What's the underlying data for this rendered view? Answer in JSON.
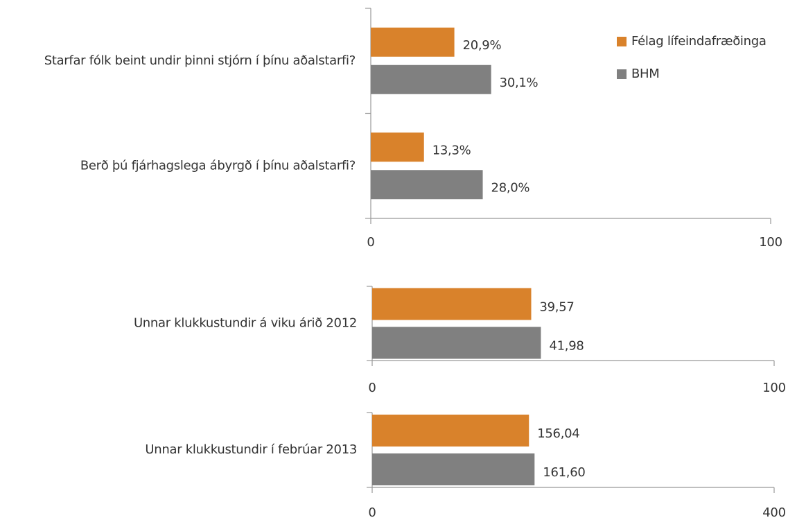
{
  "chart_data": [
    {
      "type": "barh",
      "categories": [
        "Starfar fólk beint undir þinni stjórn í þínu aðalstarfi?",
        "Berð þú fjárhagslega ábyrgð í þínu aðalstarfi?"
      ],
      "series": [
        {
          "name": "Félag lífeindafræðinga",
          "color": "#d9822b",
          "values": [
            20.9,
            13.3
          ],
          "value_labels": [
            "20,9%",
            "13,3%"
          ]
        },
        {
          "name": "BHM",
          "color": "#808080",
          "values": [
            30.1,
            28.0
          ],
          "value_labels": [
            "30,1%",
            "28,0%"
          ]
        }
      ],
      "xlim": [
        0,
        100
      ],
      "xticks": [
        0,
        100
      ],
      "legend": "top-right"
    },
    {
      "type": "barh",
      "categories": [
        "Unnar klukkustundir á viku árið 2012"
      ],
      "series": [
        {
          "color": "#d9822b",
          "values": [
            39.57
          ],
          "value_labels": [
            "39,57"
          ]
        },
        {
          "color": "#808080",
          "values": [
            41.98
          ],
          "value_labels": [
            "41,98"
          ]
        }
      ],
      "xlim": [
        0,
        100
      ],
      "xticks": [
        0,
        100
      ]
    },
    {
      "type": "barh",
      "categories": [
        "Unnar klukkustundir í febrúar 2013"
      ],
      "series": [
        {
          "color": "#d9822b",
          "values": [
            156.04
          ],
          "value_labels": [
            "156,04"
          ]
        },
        {
          "color": "#808080",
          "values": [
            161.6
          ],
          "value_labels": [
            "161,60"
          ]
        }
      ],
      "xlim": [
        0,
        400
      ],
      "xticks": [
        0,
        400
      ]
    }
  ]
}
